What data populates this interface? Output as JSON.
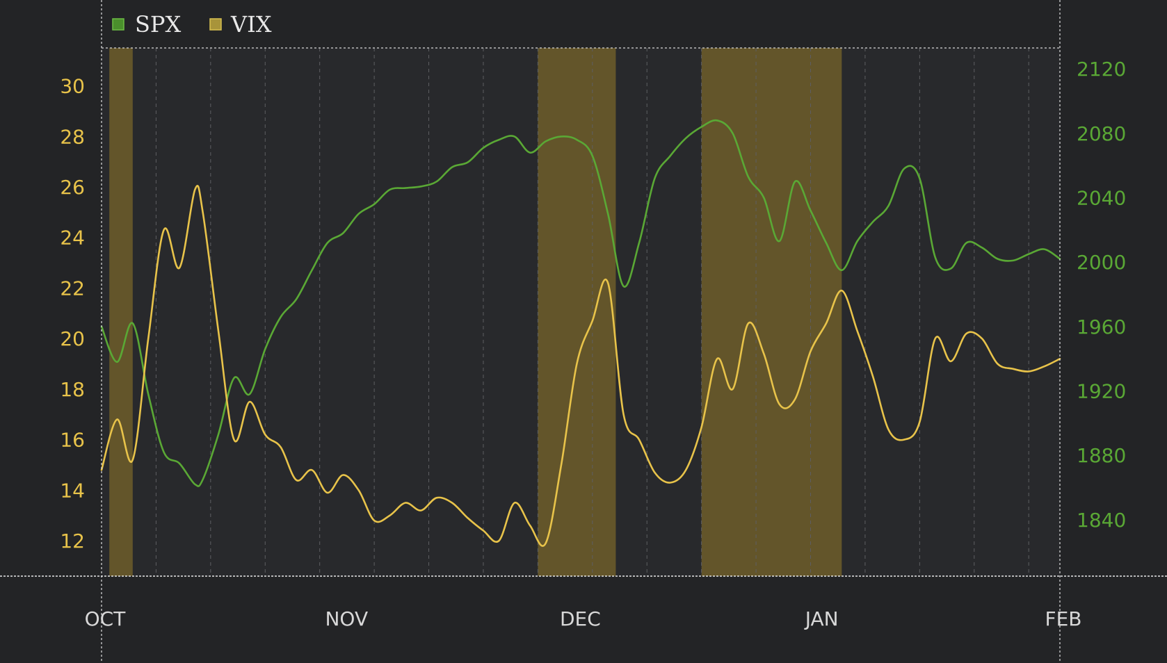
{
  "chart_data": {
    "type": "line",
    "title": "",
    "legend": {
      "placement": "top-left",
      "entries": [
        {
          "name": "SPX",
          "color": "#5aa835"
        },
        {
          "name": "VIX",
          "color": "#c8b03c"
        }
      ]
    },
    "x_axis": {
      "label": "",
      "ticks": [
        "OCT",
        "NOV",
        "DEC",
        "JAN",
        "FEB"
      ],
      "range": [
        "2014-10-01",
        "2015-02-01"
      ],
      "grid": "dashed-weekly"
    },
    "y_left": {
      "series": "VIX",
      "ticks": [
        12,
        14,
        16,
        18,
        20,
        22,
        24,
        26,
        28,
        30
      ],
      "range": [
        10.6,
        31.5
      ],
      "color": "#e8c34a"
    },
    "y_right": {
      "series": "SPX",
      "ticks": [
        1840,
        1880,
        1920,
        1960,
        2000,
        2040,
        2080,
        2120
      ],
      "range": [
        1805,
        2133
      ],
      "color": "#5aa835"
    },
    "shaded_regions": [
      {
        "start": "2014-10-02",
        "end": "2014-10-05",
        "color": "#63552a"
      },
      {
        "start": "2014-11-26",
        "end": "2014-12-06",
        "color": "#63552a"
      },
      {
        "start": "2014-12-17",
        "end": "2015-01-04",
        "color": "#63552a"
      }
    ],
    "series": [
      {
        "name": "SPX",
        "axis": "right",
        "color": "#5aa835",
        "x": [
          "2014-10-01",
          "2014-10-03",
          "2014-10-05",
          "2014-10-07",
          "2014-10-09",
          "2014-10-11",
          "2014-10-13",
          "2014-10-14",
          "2014-10-16",
          "2014-10-18",
          "2014-10-20",
          "2014-10-22",
          "2014-10-24",
          "2014-10-26",
          "2014-10-28",
          "2014-10-30",
          "2014-11-01",
          "2014-11-03",
          "2014-11-05",
          "2014-11-07",
          "2014-11-09",
          "2014-11-11",
          "2014-11-13",
          "2014-11-15",
          "2014-11-17",
          "2014-11-19",
          "2014-11-21",
          "2014-11-23",
          "2014-11-25",
          "2014-11-27",
          "2014-11-29",
          "2014-12-01",
          "2014-12-03",
          "2014-12-05",
          "2014-12-07",
          "2014-12-09",
          "2014-12-11",
          "2014-12-13",
          "2014-12-15",
          "2014-12-17",
          "2014-12-19",
          "2014-12-21",
          "2014-12-23",
          "2014-12-25",
          "2014-12-27",
          "2014-12-29",
          "2014-12-31",
          "2015-01-02",
          "2015-01-04",
          "2015-01-06",
          "2015-01-08",
          "2015-01-10",
          "2015-01-12",
          "2015-01-14",
          "2015-01-16",
          "2015-01-18",
          "2015-01-20",
          "2015-01-22",
          "2015-01-24",
          "2015-01-26",
          "2015-01-28",
          "2015-01-30",
          "2015-02-01"
        ],
        "values": [
          1960,
          1938,
          1962,
          1918,
          1882,
          1875,
          1862,
          1865,
          1893,
          1928,
          1918,
          1946,
          1966,
          1977,
          1995,
          2012,
          2018,
          2030,
          2036,
          2045,
          2046,
          2047,
          2050,
          2059,
          2062,
          2071,
          2076,
          2078,
          2068,
          2075,
          2078,
          2076,
          2066,
          2030,
          1985,
          2012,
          2052,
          2066,
          2077,
          2084,
          2088,
          2080,
          2053,
          2040,
          2013,
          2050,
          2032,
          2012,
          1995,
          2013,
          2025,
          2035,
          2058,
          2052,
          2003,
          1996,
          2012,
          2009,
          2002,
          2001,
          2005,
          2008,
          2002
        ]
      },
      {
        "name": "VIX",
        "axis": "left",
        "color": "#e8c34a",
        "x": [
          "2014-10-01",
          "2014-10-03",
          "2014-10-05",
          "2014-10-07",
          "2014-10-09",
          "2014-10-11",
          "2014-10-13",
          "2014-10-14",
          "2014-10-16",
          "2014-10-18",
          "2014-10-20",
          "2014-10-22",
          "2014-10-24",
          "2014-10-26",
          "2014-10-28",
          "2014-10-30",
          "2014-11-01",
          "2014-11-03",
          "2014-11-05",
          "2014-11-07",
          "2014-11-09",
          "2014-11-11",
          "2014-11-13",
          "2014-11-15",
          "2014-11-17",
          "2014-11-19",
          "2014-11-21",
          "2014-11-23",
          "2014-11-25",
          "2014-11-27",
          "2014-11-29",
          "2014-12-01",
          "2014-12-03",
          "2014-12-05",
          "2014-12-07",
          "2014-12-09",
          "2014-12-11",
          "2014-12-13",
          "2014-12-15",
          "2014-12-17",
          "2014-12-19",
          "2014-12-21",
          "2014-12-23",
          "2014-12-25",
          "2014-12-27",
          "2014-12-29",
          "2014-12-31",
          "2015-01-02",
          "2015-01-04",
          "2015-01-06",
          "2015-01-08",
          "2015-01-10",
          "2015-01-12",
          "2015-01-14",
          "2015-01-16",
          "2015-01-18",
          "2015-01-20",
          "2015-01-22",
          "2015-01-24",
          "2015-01-26",
          "2015-01-28",
          "2015-01-30",
          "2015-02-01"
        ],
        "values": [
          14.8,
          16.8,
          15.2,
          20.0,
          24.3,
          22.8,
          25.9,
          25.0,
          20.3,
          16.0,
          17.5,
          16.2,
          15.7,
          14.4,
          14.8,
          13.9,
          14.6,
          14.0,
          12.8,
          13.0,
          13.5,
          13.2,
          13.7,
          13.5,
          12.9,
          12.4,
          12.0,
          13.5,
          12.6,
          11.9,
          15.0,
          19.0,
          20.7,
          22.2,
          17.0,
          16.0,
          14.7,
          14.3,
          14.8,
          16.5,
          19.2,
          18.0,
          20.6,
          19.4,
          17.4,
          17.6,
          19.5,
          20.6,
          21.9,
          20.3,
          18.5,
          16.4,
          16.0,
          16.7,
          20.0,
          19.1,
          20.2,
          20.0,
          19.0,
          18.8,
          18.7,
          18.9,
          19.2
        ]
      }
    ]
  }
}
